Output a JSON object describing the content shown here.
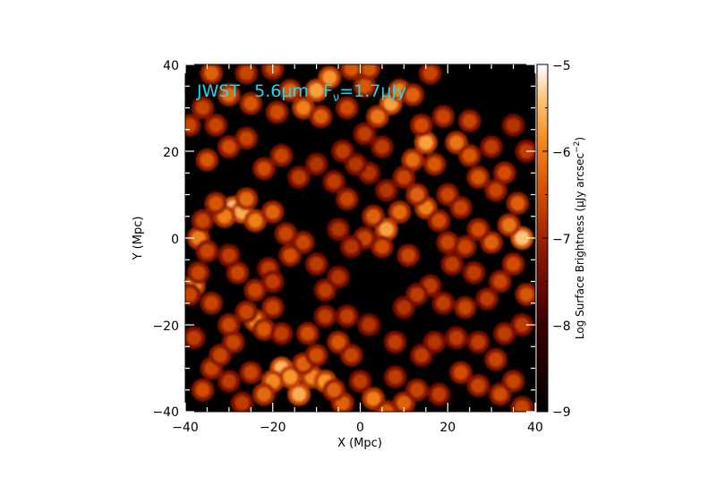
{
  "chart_data": {
    "type": "heatmap",
    "title_parts": {
      "mission": "JWST",
      "wavelength": "5.6",
      "wavelength_unit_mu": "μ",
      "wavelength_unit_m": "m",
      "flux_symbol": "F",
      "flux_subscript": "ν",
      "flux_equals": "=1.7",
      "flux_unit": "μJy"
    },
    "xlabel": "X (Mpc)",
    "ylabel": "Y (Mpc)",
    "xlim": [
      -40,
      40
    ],
    "ylim": [
      -40,
      40
    ],
    "x_ticks": [
      -40,
      -20,
      0,
      20,
      40
    ],
    "y_ticks": [
      -40,
      -20,
      0,
      20,
      40
    ],
    "x_tick_labels": [
      "−40",
      "−20",
      "0",
      "20",
      "40"
    ],
    "y_tick_labels": [
      "−40",
      "−20",
      "0",
      "20",
      "40"
    ],
    "colorbar": {
      "label_parts": {
        "text": "Log Surface Brightness (",
        "mu": "μ",
        "unit": "Jy arcsec",
        "exponent": "−2",
        "close": ")"
      },
      "range": [
        -9,
        -5
      ],
      "ticks": [
        -9,
        -8,
        -7,
        -6,
        -5
      ],
      "tick_labels": [
        "−9",
        "−8",
        "−7",
        "−6",
        "−5"
      ],
      "colormap": "black-red-orange-white"
    },
    "sources": [
      [
        -29,
        7,
        -5.4
      ],
      [
        -27,
        6,
        -5.6
      ],
      [
        -31,
        5,
        -6.0
      ],
      [
        -26,
        9,
        -6.2
      ],
      [
        -24,
        4,
        -6.0
      ],
      [
        -20,
        6,
        -6.3
      ],
      [
        -33,
        8,
        -6.4
      ],
      [
        -38,
        -11,
        -5.8
      ],
      [
        -37,
        -8,
        -6.6
      ],
      [
        -39,
        -13,
        -6.6
      ],
      [
        -37,
        0,
        -6.0
      ],
      [
        -35,
        -3,
        -6.6
      ],
      [
        -36,
        4,
        -6.6
      ],
      [
        -24,
        -19,
        -5.9
      ],
      [
        -22,
        -21,
        -6.4
      ],
      [
        -26,
        -17,
        -6.6
      ],
      [
        -20,
        -16,
        -6.6
      ],
      [
        -18,
        -22,
        -6.7
      ],
      [
        -18,
        -30,
        -5.5
      ],
      [
        -16,
        -32,
        -5.8
      ],
      [
        -20,
        -33,
        -5.9
      ],
      [
        -14,
        -36,
        -5.6
      ],
      [
        -11,
        -32,
        -5.9
      ],
      [
        -8,
        -33,
        -5.8
      ],
      [
        -13,
        -29,
        -6.3
      ],
      [
        -22,
        -36,
        -6.2
      ],
      [
        -25,
        -31,
        -6.6
      ],
      [
        -10,
        -27,
        -6.5
      ],
      [
        -30,
        -33,
        -6.7
      ],
      [
        -34,
        -30,
        -6.6
      ],
      [
        -27,
        -38,
        -6.7
      ],
      [
        -10,
        34,
        -5.7
      ],
      [
        -13,
        30,
        -6.0
      ],
      [
        -7,
        37,
        -5.8
      ],
      [
        -16,
        34,
        -6.3
      ],
      [
        -9,
        28,
        -6.3
      ],
      [
        -19,
        29,
        -6.5
      ],
      [
        -25,
        31,
        -6.4
      ],
      [
        -30,
        33,
        -6.2
      ],
      [
        -34,
        38,
        -6.3
      ],
      [
        -3,
        30,
        -6.5
      ],
      [
        7,
        31,
        -5.7
      ],
      [
        9,
        34,
        -6.0
      ],
      [
        4,
        28,
        -6.1
      ],
      [
        12,
        33,
        -6.3
      ],
      [
        1,
        35,
        -6.4
      ],
      [
        15,
        22,
        -5.7
      ],
      [
        12,
        18,
        -6.2
      ],
      [
        17,
        17,
        -6.4
      ],
      [
        14,
        26,
        -6.5
      ],
      [
        10,
        14,
        -6.6
      ],
      [
        22,
        22,
        -6.1
      ],
      [
        25,
        19,
        -6.4
      ],
      [
        27,
        14,
        -6.4
      ],
      [
        31,
        11,
        -6.6
      ],
      [
        33,
        15,
        -6.5
      ],
      [
        6,
        2,
        -5.7
      ],
      [
        3,
        5,
        -6.3
      ],
      [
        9,
        6,
        -6.2
      ],
      [
        5,
        -2,
        -6.5
      ],
      [
        1,
        0,
        -6.6
      ],
      [
        -2,
        -2,
        -6.8
      ],
      [
        -5,
        2,
        -6.8
      ],
      [
        15,
        7,
        -6.0
      ],
      [
        13,
        10,
        -6.3
      ],
      [
        18,
        4,
        -6.5
      ],
      [
        20,
        -1,
        -6.6
      ],
      [
        11,
        -4,
        -6.6
      ],
      [
        37,
        0,
        -5.4
      ],
      [
        34,
        3,
        -6.1
      ],
      [
        30,
        -1,
        -6.3
      ],
      [
        27,
        2,
        -6.5
      ],
      [
        24,
        -2,
        -6.6
      ],
      [
        35,
        -6,
        -6.5
      ],
      [
        32,
        -10,
        -6.6
      ],
      [
        38,
        -13,
        -6.4
      ],
      [
        36,
        8,
        -6.3
      ],
      [
        37,
        -20,
        -6.7
      ],
      [
        -16,
        -4,
        -6.5
      ],
      [
        -13,
        -1,
        -6.6
      ],
      [
        -10,
        -6,
        -6.7
      ],
      [
        -17,
        1,
        -6.6
      ],
      [
        -8,
        -12,
        -6.7
      ],
      [
        -5,
        -9,
        -6.8
      ],
      [
        -4,
        -38,
        -6.3
      ],
      [
        3,
        -37,
        -6.0
      ],
      [
        6,
        -40,
        -6.4
      ],
      [
        0,
        -33,
        -6.7
      ],
      [
        -6,
        -35,
        -6.3
      ],
      [
        10,
        -38,
        -6.3
      ],
      [
        13,
        -35,
        -6.6
      ],
      [
        8,
        -32,
        -6.7
      ],
      [
        18,
        -36,
        -6.7
      ],
      [
        23,
        -31,
        -6.5
      ],
      [
        27,
        -34,
        -6.6
      ],
      [
        32,
        -36,
        -6.5
      ],
      [
        35,
        -33,
        -6.6
      ],
      [
        31,
        -28,
        -6.6
      ],
      [
        37,
        -39,
        -6.6
      ],
      [
        22,
        -23,
        -6.7
      ],
      [
        27,
        -24,
        -6.7
      ],
      [
        33,
        -22,
        -6.7
      ],
      [
        24,
        -16,
        -6.6
      ],
      [
        -12,
        -22,
        -6.5
      ],
      [
        -5,
        -24,
        -6.4
      ],
      [
        -2,
        -27,
        -6.6
      ],
      [
        -3,
        -18,
        -6.7
      ],
      [
        19,
        -15,
        -6.7
      ],
      [
        16,
        -11,
        -6.7
      ],
      [
        13,
        -13,
        -6.7
      ],
      [
        10,
        -16,
        -6.8
      ],
      [
        -35,
        18,
        -6.4
      ],
      [
        -30,
        21,
        -6.5
      ],
      [
        -26,
        23,
        -6.6
      ],
      [
        -22,
        16,
        -6.5
      ],
      [
        -18,
        19,
        -6.6
      ],
      [
        -14,
        14,
        -6.7
      ],
      [
        -10,
        17,
        -6.8
      ],
      [
        -6,
        13,
        -6.7
      ],
      [
        -3,
        9,
        -6.6
      ],
      [
        -39,
        26,
        -6.6
      ],
      [
        -36,
        30,
        -6.6
      ],
      [
        -33,
        26,
        -6.6
      ],
      [
        -4,
        20,
        -6.7
      ],
      [
        1,
        24,
        -6.7
      ],
      [
        5,
        21,
        -6.7
      ],
      [
        -30,
        -20,
        -6.6
      ],
      [
        -34,
        -15,
        -6.6
      ],
      [
        -29,
        -24,
        -6.6
      ],
      [
        -32,
        -27,
        -6.6
      ],
      [
        -36,
        -35,
        -6.5
      ],
      [
        -38,
        -23,
        -6.7
      ],
      [
        -28,
        -8,
        -6.6
      ],
      [
        -24,
        -12,
        -6.6
      ],
      [
        -30,
        -4,
        -6.7
      ],
      [
        -21,
        -7,
        -6.7
      ],
      [
        -20,
        -10,
        -6.7
      ],
      [
        26,
        -8,
        -6.7
      ],
      [
        21,
        -6,
        -6.7
      ],
      [
        29,
        -14,
        -6.7
      ],
      [
        -8,
        -18,
        -6.7
      ],
      [
        2,
        -20,
        -6.8
      ],
      [
        8,
        -24,
        -6.7
      ],
      [
        14,
        -27,
        -6.7
      ],
      [
        17,
        -24,
        -6.8
      ],
      [
        2,
        15,
        -6.8
      ],
      [
        6,
        11,
        -6.8
      ],
      [
        -1,
        17,
        -6.8
      ],
      [
        20,
        10,
        -6.6
      ],
      [
        23,
        7,
        -6.6
      ],
      [
        19,
        28,
        -6.6
      ],
      [
        25,
        27,
        -6.6
      ],
      [
        30,
        21,
        -6.7
      ],
      [
        35,
        26,
        -6.8
      ],
      [
        38,
        20,
        -6.7
      ],
      [
        2,
        39,
        -6.4
      ],
      [
        -2,
        39,
        -6.4
      ],
      [
        16,
        38,
        -6.6
      ],
      [
        -20,
        39,
        -6.6
      ],
      [
        -26,
        38,
        -6.6
      ]
    ]
  }
}
